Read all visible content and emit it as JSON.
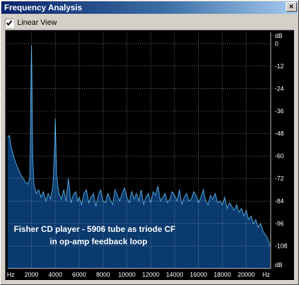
{
  "window": {
    "title": "Frequency Analysis",
    "close_label": "×"
  },
  "options": {
    "linear_view_label": "Linear View",
    "linear_view_checked": true
  },
  "colors": {
    "plot_background": "#000000",
    "grid": "#ffffff",
    "spectrum_fill": "#0a3a6e",
    "spectrum_line": "#4fa8e0",
    "text": "#ffffff"
  },
  "chart_data": {
    "type": "area",
    "x_unit_label": "Hz",
    "y_unit_label": "dB",
    "x_ticks": [
      2000,
      4000,
      6000,
      8000,
      10000,
      12000,
      14000,
      16000,
      18000,
      20000
    ],
    "y_ticks": [
      0,
      -12,
      -24,
      -36,
      -48,
      -60,
      -72,
      -84,
      -96,
      -108
    ],
    "xlim": [
      0,
      22050
    ],
    "ylim": [
      -120,
      6
    ],
    "grid": true,
    "annotation": [
      "Fisher CD player - 5906 tube as triode CF",
      "in op-amp feedback loop"
    ],
    "series": [
      {
        "x": [
          0,
          150,
          300,
          500,
          700,
          900,
          1100,
          1300,
          1500,
          1700,
          1850,
          1900,
          1950,
          2000,
          2050,
          2100,
          2200,
          2400,
          2600,
          2800,
          3000,
          3200,
          3400,
          3600,
          3800,
          3900,
          3950,
          4000,
          4050,
          4100,
          4300,
          4500,
          4700,
          4900,
          5100,
          5300,
          5500,
          5700,
          5900,
          6000,
          6200,
          6400,
          6600,
          6800,
          7000,
          7200,
          7400,
          7600,
          7800,
          8000,
          8200,
          8400,
          8600,
          8800,
          9000,
          9200,
          9400,
          9600,
          9800,
          10000,
          10200,
          10400,
          10600,
          10800,
          11000,
          11200,
          11400,
          11600,
          11800,
          12000,
          12200,
          12400,
          12600,
          12800,
          13000,
          13200,
          13400,
          13600,
          13800,
          14000,
          14200,
          14400,
          14600,
          14800,
          15000,
          15200,
          15400,
          15600,
          15800,
          16000,
          16200,
          16400,
          16600,
          16800,
          17000,
          17200,
          17400,
          17600,
          17800,
          18000,
          18200,
          18400,
          18600,
          18800,
          19000,
          19200,
          19400,
          19600,
          19800,
          20000,
          20200,
          20400,
          20600,
          20800,
          21000,
          21200,
          21400,
          21600,
          21800,
          22000
        ],
        "y": [
          -50,
          -49,
          -55,
          -60,
          -64,
          -67,
          -70,
          -72,
          -74,
          -75,
          -72,
          -58,
          -22,
          -1,
          -24,
          -60,
          -75,
          -80,
          -78,
          -82,
          -79,
          -84,
          -80,
          -83,
          -76,
          -62,
          -52,
          -40,
          -54,
          -70,
          -80,
          -83,
          -78,
          -84,
          -72,
          -85,
          -81,
          -79,
          -84,
          -82,
          -86,
          -80,
          -78,
          -85,
          -82,
          -80,
          -87,
          -81,
          -78,
          -84,
          -85,
          -80,
          -83,
          -86,
          -78,
          -81,
          -84,
          -80,
          -77,
          -82,
          -85,
          -79,
          -83,
          -80,
          -84,
          -78,
          -86,
          -82,
          -80,
          -85,
          -79,
          -81,
          -76,
          -84,
          -82,
          -80,
          -85,
          -83,
          -79,
          -81,
          -84,
          -78,
          -86,
          -82,
          -80,
          -84,
          -83,
          -79,
          -81,
          -85,
          -82,
          -78,
          -84,
          -86,
          -81,
          -83,
          -80,
          -85,
          -84,
          -86,
          -82,
          -88,
          -85,
          -87,
          -89,
          -86,
          -90,
          -88,
          -92,
          -89,
          -94,
          -92,
          -96,
          -94,
          -98,
          -96,
          -100,
          -102,
          -104,
          -108
        ]
      }
    ]
  }
}
